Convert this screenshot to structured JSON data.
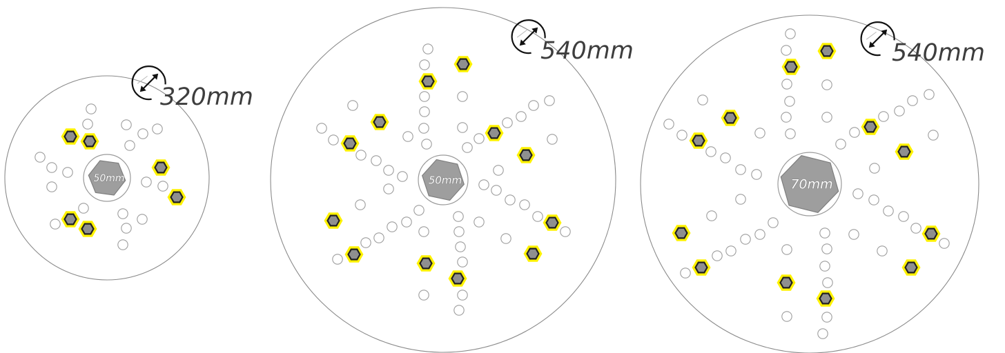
{
  "plates": [
    {
      "id": "plate-320",
      "diameter_label": "320mm",
      "hub_label": "50mm"
    },
    {
      "id": "plate-540-a",
      "diameter_label": "540mm",
      "hub_label": "50mm"
    },
    {
      "id": "plate-540-b",
      "diameter_label": "540mm",
      "hub_label": "70mm"
    }
  ],
  "colors": {
    "boss_highlight": "#fff200",
    "boss_fill": "#8f8f8f",
    "hub_fill": "#9e9e9e",
    "plate_outline": "#8a8a8a"
  },
  "icons": {
    "diameter": "diameter-icon",
    "boss": "hex-boss-icon"
  }
}
